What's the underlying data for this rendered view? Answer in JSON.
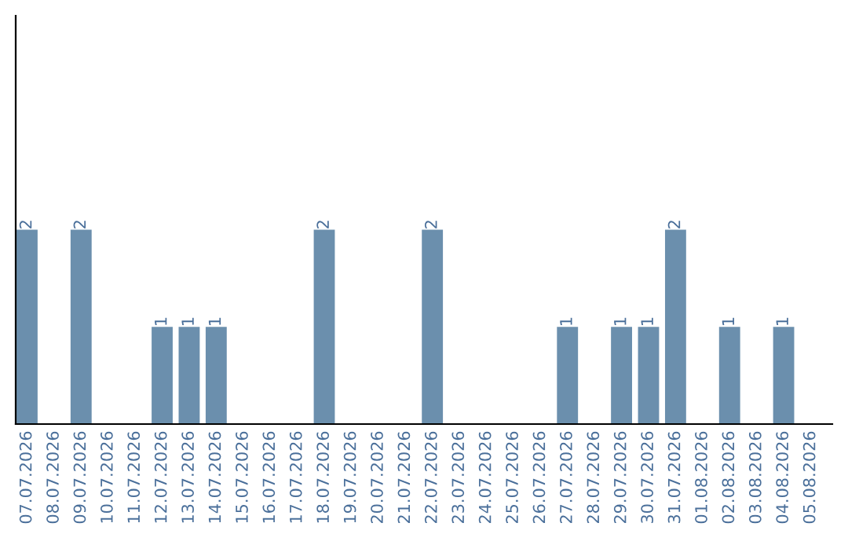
{
  "chart_data": {
    "type": "bar",
    "categories": [
      "07.07.2026",
      "08.07.2026",
      "09.07.2026",
      "10.07.2026",
      "11.07.2026",
      "12.07.2026",
      "13.07.2026",
      "14.07.2026",
      "15.07.2026",
      "16.07.2026",
      "17.07.2026",
      "18.07.2026",
      "19.07.2026",
      "20.07.2026",
      "21.07.2026",
      "22.07.2026",
      "23.07.2026",
      "24.07.2026",
      "25.07.2026",
      "26.07.2026",
      "27.07.2026",
      "28.07.2026",
      "29.07.2026",
      "30.07.2026",
      "31.07.2026",
      "01.08.2026",
      "02.08.2026",
      "03.08.2026",
      "04.08.2026",
      "05.08.2026"
    ],
    "values": [
      2,
      0,
      2,
      0,
      0,
      1,
      1,
      1,
      0,
      0,
      0,
      2,
      0,
      0,
      0,
      2,
      0,
      0,
      0,
      0,
      1,
      0,
      1,
      1,
      2,
      0,
      1,
      0,
      1,
      0
    ],
    "value_labels": [
      "2",
      null,
      "2",
      null,
      null,
      "1",
      "1",
      "1",
      null,
      null,
      null,
      "2",
      null,
      null,
      null,
      "2",
      null,
      null,
      null,
      null,
      "1",
      null,
      "1",
      "1",
      "2",
      null,
      "1",
      null,
      "1",
      null
    ],
    "color": "#6b8fad",
    "ylim": [
      0,
      4.2
    ],
    "tick_labels": "x",
    "grid": false,
    "legend": false
  }
}
